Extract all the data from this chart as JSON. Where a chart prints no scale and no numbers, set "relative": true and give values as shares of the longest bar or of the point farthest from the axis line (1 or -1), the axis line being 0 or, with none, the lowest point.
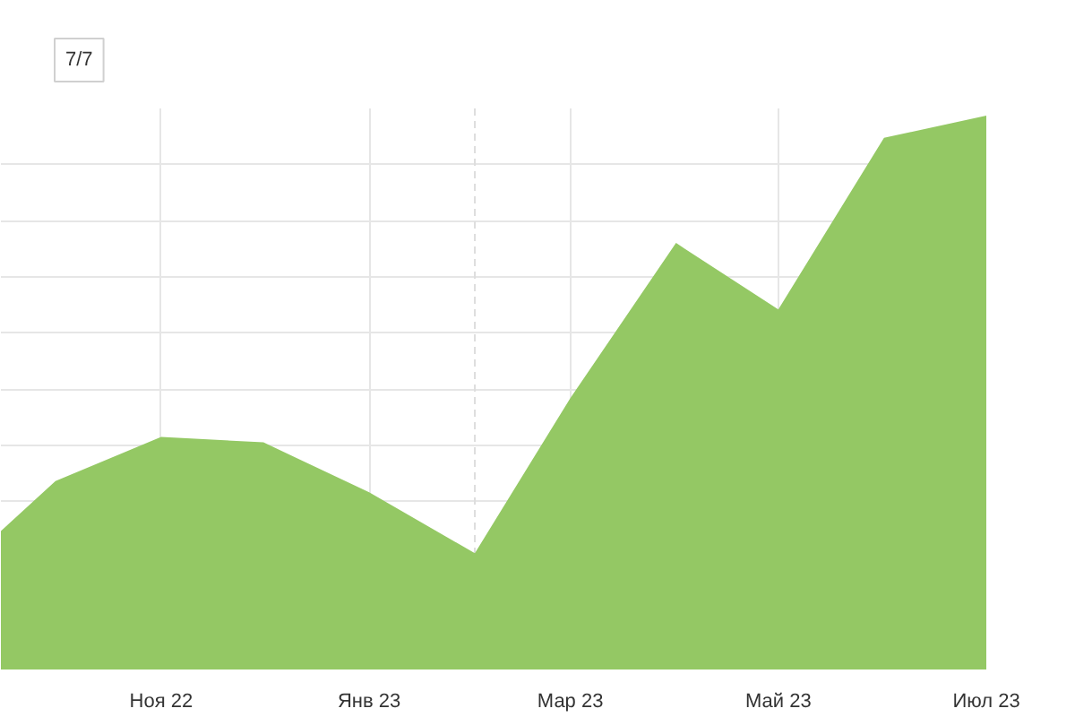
{
  "chart_data": {
    "type": "area",
    "relative": true,
    "x": [
      "2022-09-15",
      "2022-10",
      "2022-11",
      "2022-12",
      "2023-01",
      "2023-02",
      "2023-03",
      "2023-04",
      "2023-05",
      "2023-06",
      "2023-07"
    ],
    "values": [
      0.25,
      0.34,
      0.42,
      0.41,
      0.32,
      0.21,
      0.49,
      0.77,
      0.65,
      0.96,
      1
    ],
    "color": "#94c864",
    "xlim": [
      "2022-09-15",
      "2023-07-01"
    ],
    "xticks": [
      {
        "value": "2022-11",
        "label": "Ноя 22"
      },
      {
        "value": "2023-01",
        "label": "Янв 23"
      },
      {
        "value": "2023-03",
        "label": "Мар 23"
      },
      {
        "value": "2023-05",
        "label": "Май 23"
      },
      {
        "value": "2023-07",
        "label": "Июл 23"
      }
    ],
    "grid": true,
    "ref_lines": [
      {
        "axis": "x",
        "value": "2023-02",
        "line_style": "dashed",
        "color": "#dddddd"
      }
    ],
    "annotations": [
      "7/7"
    ]
  }
}
